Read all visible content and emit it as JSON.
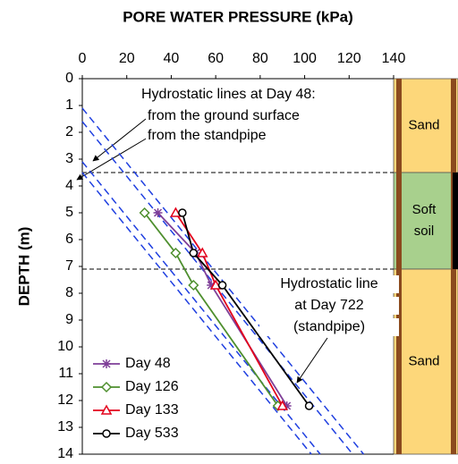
{
  "chart_data": {
    "type": "line",
    "title": "PORE WATER PRESSURE (kPa)",
    "y_label": "DEPTH (m)",
    "xlim": [
      0,
      140
    ],
    "xticks": [
      0,
      20,
      40,
      60,
      80,
      100,
      120,
      140
    ],
    "ylim": [
      0,
      14
    ],
    "yticks": [
      0,
      1,
      2,
      3,
      4,
      5,
      6,
      7,
      8,
      9,
      10,
      11,
      12,
      13,
      14
    ],
    "y_inverted": true,
    "legend": "lower left",
    "series": [
      {
        "name": "Day 48",
        "color": "#7f3f98",
        "marker": "star",
        "x": [
          34,
          51,
          58,
          92
        ],
        "y": [
          5,
          6.5,
          7.7,
          12.2
        ]
      },
      {
        "name": "Day 126",
        "color": "#4e8f2e",
        "marker": "diamond",
        "x": [
          28,
          42,
          50,
          88
        ],
        "y": [
          5,
          6.5,
          7.7,
          12.2
        ]
      },
      {
        "name": "Day 133",
        "color": "#e3001b",
        "marker": "triangle",
        "x": [
          42,
          54,
          60,
          90
        ],
        "y": [
          5,
          6.5,
          7.7,
          12.2
        ]
      },
      {
        "name": "Day 533",
        "color": "#000000",
        "marker": "circle",
        "x": [
          45,
          50,
          63,
          102
        ],
        "y": [
          5,
          6.5,
          7.7,
          12.2
        ]
      }
    ],
    "hydrostatic_lines": {
      "color": "#1f3fe0",
      "lines": [
        {
          "x": [
            0,
            126.5
          ],
          "y": [
            1.1,
            14
          ]
        },
        {
          "x": [
            0,
            121.6
          ],
          "y": [
            1.6,
            14
          ]
        },
        {
          "x": [
            0,
            107
          ],
          "y": [
            3.1,
            14
          ]
        },
        {
          "x": [
            0,
            103
          ],
          "y": [
            3.5,
            14
          ]
        }
      ]
    },
    "layer_boundaries": [
      3.5,
      7.1
    ],
    "soil_layers": [
      {
        "label": "Sand",
        "top": 0,
        "bottom": 3.5,
        "color": "#fdd77a"
      },
      {
        "label": "Soft soil",
        "top": 3.5,
        "bottom": 7.1,
        "color": "#a8d08d"
      },
      {
        "label": "Sand",
        "top": 7.1,
        "bottom": 14,
        "color": "#fdd77a"
      }
    ],
    "annotations": [
      "Hydrostatic lines at Day 48:",
      "from the ground surface",
      "from the standpipe",
      "Hydrostatic line",
      "at Day 722",
      "(standpipe)"
    ]
  }
}
